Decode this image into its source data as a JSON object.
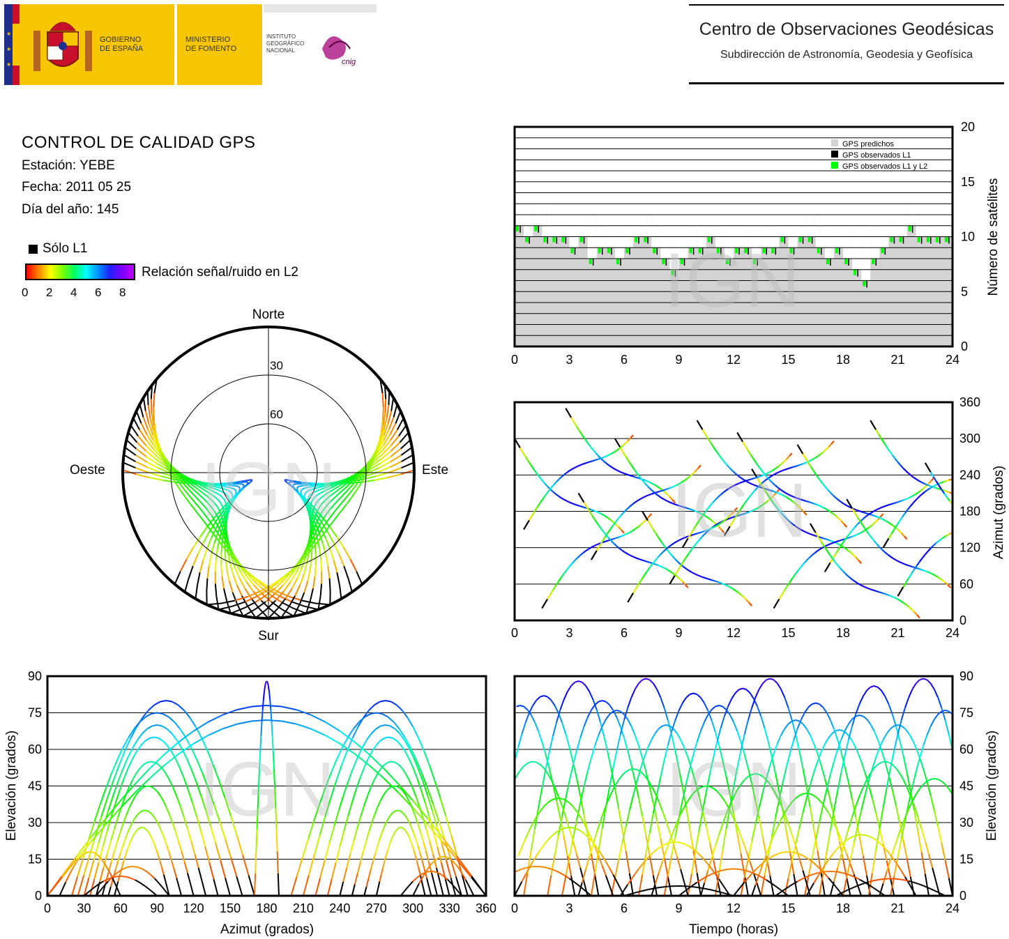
{
  "header": {
    "gov_line1": "GOBIERNO",
    "gov_line2": "DE ESPAÑA",
    "min_line1": "MINISTERIO",
    "min_line2": "DE FOMENTO",
    "ign_line1": "INSTITUTO",
    "ign_line2": "GEOGRÁFICO",
    "ign_line3": "NACIONAL",
    "cnig": "cnig",
    "centro_title": "Centro de Observaciones Geodésicas",
    "centro_subtitle": "Subdirección de Astronomía, Geodesia y Geofísica",
    "colors": {
      "yellow": "#f7c600",
      "flag_blue": "#1e2f8c",
      "flag_red": "#c8102e"
    }
  },
  "info": {
    "title": "CONTROL DE CALIDAD GPS",
    "station": "Estación: YEBE",
    "date": "Fecha: 2011 05 25",
    "doy": "Día del año: 145",
    "legend_l1": "Sólo L1",
    "colorbar_label": "Relación señal/ruido en L2",
    "colorbar_ticks": [
      "0",
      "2",
      "4",
      "6",
      "8"
    ]
  },
  "watermark": "IGN",
  "chart_data": [
    {
      "id": "skyplot",
      "type": "scatter",
      "title": "",
      "directions": {
        "north": "Norte",
        "south": "Sur",
        "east": "Este",
        "west": "Oeste"
      },
      "elevation_ring_labels": [
        "30",
        "60"
      ],
      "elevation_rings": [
        0,
        30,
        60
      ],
      "note_colors": "track color = L2 SNR 0-8; black = L1 only"
    },
    {
      "id": "satellite-count",
      "type": "area",
      "ylabel": "Número de satélites",
      "xlim": [
        0,
        24
      ],
      "ylim": [
        0,
        20
      ],
      "x_ticks": [
        "0",
        "3",
        "6",
        "9",
        "12",
        "15",
        "18",
        "21",
        "24"
      ],
      "y_ticks": [
        "0",
        "5",
        "10",
        "15",
        "20"
      ],
      "legend": [
        "GPS predichos",
        "GPS observados L1",
        "GPS observados L1 y L2"
      ],
      "legend_colors": [
        "#d3d3d3",
        "#000000",
        "#00ff00"
      ],
      "series": [
        {
          "name": "GPS predichos",
          "x": [
            0,
            0.5,
            1,
            1.5,
            2,
            2.5,
            3,
            3.5,
            4,
            4.5,
            5,
            5.5,
            6,
            6.5,
            7,
            7.5,
            8,
            8.5,
            9,
            9.5,
            10,
            10.5,
            11,
            11.5,
            12,
            12.5,
            13,
            13.5,
            14,
            14.5,
            15,
            15.5,
            16,
            16.5,
            17,
            17.5,
            18,
            18.5,
            19,
            19.5,
            20,
            20.5,
            21,
            21.5,
            22,
            22.5,
            23,
            23.5,
            24
          ],
          "values": [
            11,
            12,
            13,
            13,
            12,
            11,
            11,
            11,
            12,
            11,
            11,
            11,
            11,
            11,
            12,
            11,
            11,
            10,
            10,
            10,
            11,
            11,
            11,
            11,
            11,
            11,
            11,
            10,
            11,
            11,
            11,
            11,
            12,
            11,
            11,
            11,
            11,
            10,
            10,
            11,
            11,
            12,
            13,
            12,
            11,
            11,
            11,
            11,
            12
          ]
        },
        {
          "name": "GPS observados L1 y L2",
          "x": [
            0,
            0.5,
            1,
            1.5,
            2,
            2.5,
            3,
            3.5,
            4,
            4.5,
            5,
            5.5,
            6,
            6.5,
            7,
            7.5,
            8,
            8.5,
            9,
            9.5,
            10,
            10.5,
            11,
            11.5,
            12,
            12.5,
            13,
            13.5,
            14,
            14.5,
            15,
            15.5,
            16,
            16.5,
            17,
            17.5,
            18,
            18.5,
            19,
            19.5,
            20,
            20.5,
            21,
            21.5,
            22,
            22.5,
            23,
            23.5,
            24
          ],
          "values": [
            11,
            10,
            11,
            10,
            10,
            10,
            9,
            10,
            8,
            9,
            9,
            8,
            9,
            10,
            10,
            9,
            8,
            7,
            8,
            9,
            9,
            10,
            9,
            8,
            9,
            9,
            8,
            9,
            9,
            10,
            9,
            10,
            10,
            9,
            8,
            9,
            8,
            7,
            6,
            8,
            9,
            10,
            10,
            11,
            10,
            10,
            10,
            10,
            11
          ]
        }
      ]
    },
    {
      "id": "azimuth-time",
      "type": "scatter",
      "ylabel": "Azimut (grados)",
      "xlim": [
        0,
        24
      ],
      "ylim": [
        0,
        360
      ],
      "x_ticks": [
        "0",
        "3",
        "6",
        "9",
        "12",
        "15",
        "18",
        "21",
        "24"
      ],
      "y_ticks": [
        "0",
        "60",
        "120",
        "180",
        "240",
        "300",
        "360"
      ]
    },
    {
      "id": "elevation-azimuth",
      "type": "scatter",
      "xlabel": "Azimut (grados)",
      "ylabel": "Elevación (grados)",
      "xlim": [
        0,
        360
      ],
      "ylim": [
        0,
        90
      ],
      "x_ticks": [
        "0",
        "30",
        "60",
        "90",
        "120",
        "150",
        "180",
        "210",
        "240",
        "270",
        "300",
        "330",
        "360"
      ],
      "y_ticks": [
        "0",
        "15",
        "30",
        "45",
        "60",
        "75",
        "90"
      ]
    },
    {
      "id": "elevation-time",
      "type": "scatter",
      "xlabel": "Tiempo (horas)",
      "ylabel": "Elevación (grados)",
      "xlim": [
        0,
        24
      ],
      "ylim": [
        0,
        90
      ],
      "x_ticks": [
        "0",
        "3",
        "6",
        "9",
        "12",
        "15",
        "18",
        "21",
        "24"
      ],
      "y_ticks": [
        "0",
        "15",
        "30",
        "45",
        "60",
        "75",
        "90"
      ],
      "peaks": [
        {
          "t": 0.3,
          "e": 78
        },
        {
          "t": 1.6,
          "e": 82
        },
        {
          "t": 3.5,
          "e": 88
        },
        {
          "t": 4.8,
          "e": 80
        },
        {
          "t": 5.6,
          "e": 76
        },
        {
          "t": 7.2,
          "e": 89
        },
        {
          "t": 8.3,
          "e": 70
        },
        {
          "t": 9.8,
          "e": 83
        },
        {
          "t": 11.2,
          "e": 78
        },
        {
          "t": 12.5,
          "e": 85
        },
        {
          "t": 14.0,
          "e": 89
        },
        {
          "t": 15.4,
          "e": 72
        },
        {
          "t": 16.5,
          "e": 79
        },
        {
          "t": 17.8,
          "e": 68
        },
        {
          "t": 18.9,
          "e": 74
        },
        {
          "t": 19.7,
          "e": 86
        },
        {
          "t": 21.0,
          "e": 70
        },
        {
          "t": 22.4,
          "e": 89
        },
        {
          "t": 23.6,
          "e": 76
        },
        {
          "t": 1.0,
          "e": 55
        },
        {
          "t": 2.4,
          "e": 40
        },
        {
          "t": 6.5,
          "e": 52
        },
        {
          "t": 10.5,
          "e": 45
        },
        {
          "t": 13.2,
          "e": 50
        },
        {
          "t": 16.0,
          "e": 42
        },
        {
          "t": 20.3,
          "e": 55
        },
        {
          "t": 23.0,
          "e": 48
        },
        {
          "t": 3.0,
          "e": 28
        },
        {
          "t": 8.8,
          "e": 22
        },
        {
          "t": 15.0,
          "e": 18
        },
        {
          "t": 19.0,
          "e": 25
        },
        {
          "t": 12.0,
          "e": 11
        },
        {
          "t": 17.3,
          "e": 10
        },
        {
          "t": 20.6,
          "e": 7
        },
        {
          "t": 9.0,
          "e": 4
        },
        {
          "t": 1.2,
          "e": 12
        }
      ]
    }
  ]
}
